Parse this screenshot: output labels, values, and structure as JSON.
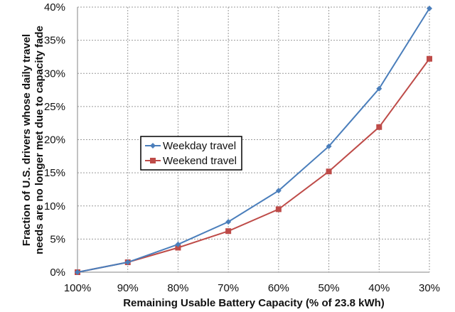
{
  "chart_data": {
    "type": "line",
    "title": "",
    "xlabel": "Remaining Usable Battery Capacity (% of 23.8 kWh)",
    "ylabel_lines": [
      "Fraction of U.S. drivers whose daily travel",
      "needs are no longer met due to capacity fade"
    ],
    "ylabel": "Fraction of U.S. drivers whose daily travel needs are no longer met due to capacity fade",
    "categories": [
      "100%",
      "90%",
      "80%",
      "70%",
      "60%",
      "50%",
      "40%",
      "30%"
    ],
    "ylim": [
      0,
      40
    ],
    "yticks": [
      "0%",
      "5%",
      "10%",
      "15%",
      "20%",
      "25%",
      "30%",
      "35%",
      "40%"
    ],
    "grid": true,
    "legend_position": "inside-center-left",
    "series": [
      {
        "name": "Weekday travel",
        "color": "#4a7ebb",
        "marker": "diamond",
        "values": [
          0,
          1.5,
          4.2,
          7.6,
          12.3,
          19.0,
          27.7,
          39.8
        ]
      },
      {
        "name": "Weekend travel",
        "color": "#be4b48",
        "marker": "square",
        "values": [
          0,
          1.5,
          3.7,
          6.2,
          9.5,
          15.2,
          21.9,
          32.2
        ]
      }
    ]
  }
}
